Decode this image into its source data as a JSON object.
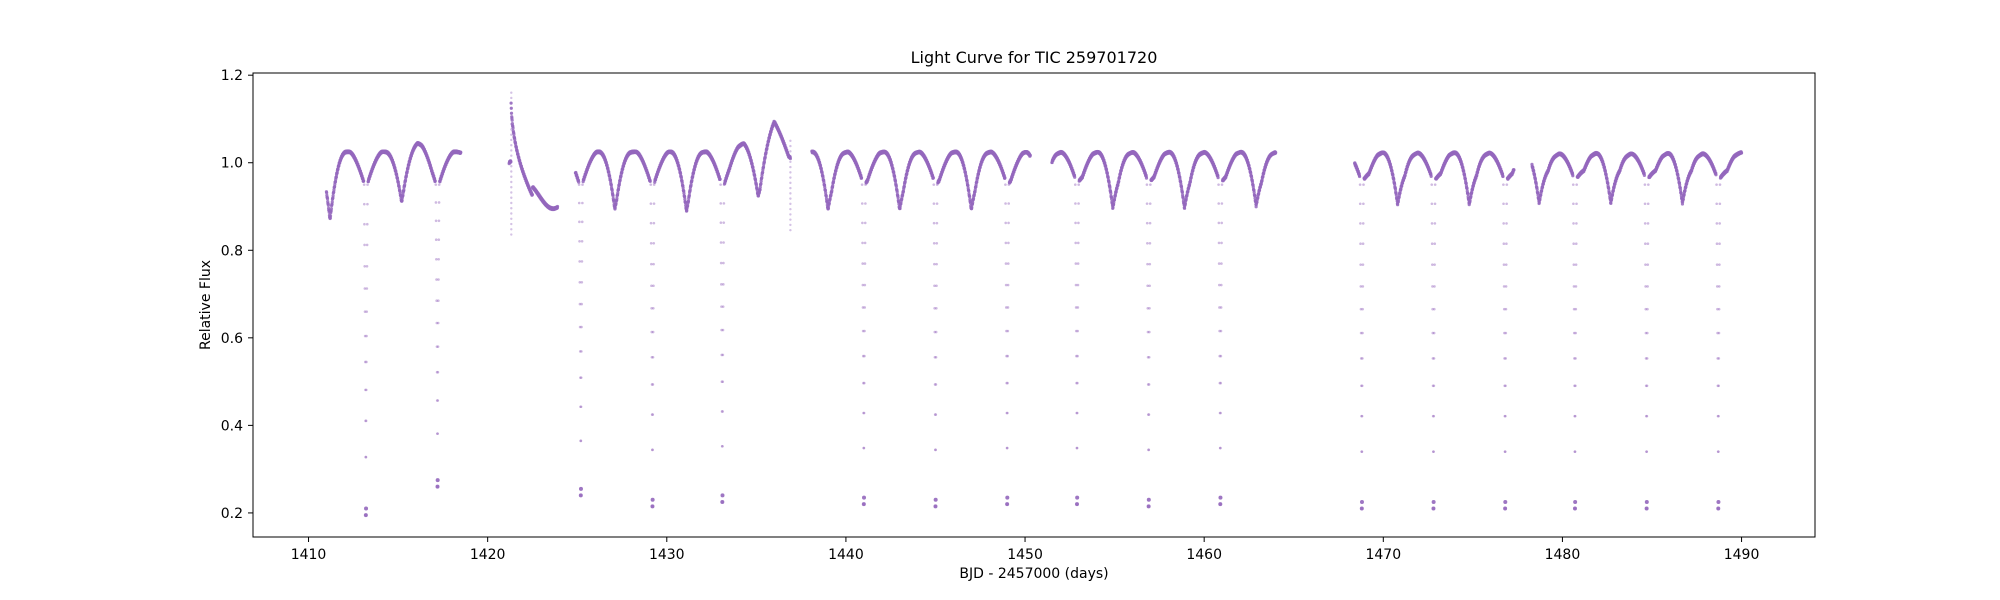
{
  "chart_data": {
    "type": "scatter",
    "title": "Light Curve for TIC 259701720",
    "xlabel": "BJD - 2457000 (days)",
    "ylabel": "Relative Flux",
    "xlim": [
      1406.9,
      1494.1
    ],
    "ylim": [
      0.145,
      1.205
    ],
    "xticks": [
      1410,
      1420,
      1430,
      1440,
      1450,
      1460,
      1470,
      1480,
      1490
    ],
    "yticks": [
      0.2,
      0.4,
      0.6,
      0.8,
      1.0,
      1.2
    ],
    "xtick_labels": [
      "1410",
      "1420",
      "1430",
      "1440",
      "1450",
      "1460",
      "1470",
      "1480",
      "1490"
    ],
    "ytick_labels": [
      "0.2",
      "0.4",
      "0.6",
      "0.8",
      "1.0",
      "1.2"
    ],
    "grid": false,
    "point_color": "#9467bd",
    "data_segments": [
      [
        1411.0,
        1418.5
      ],
      [
        1421.2,
        1423.9
      ],
      [
        1424.9,
        1436.9
      ],
      [
        1438.1,
        1450.3
      ],
      [
        1451.5,
        1464.0
      ],
      [
        1468.4,
        1477.3
      ],
      [
        1478.3,
        1490.0
      ]
    ],
    "primary_eclipses": [
      {
        "t": 1413.2,
        "depth": 0.195
      },
      {
        "t": 1417.2,
        "depth": 0.26
      },
      {
        "t": 1425.2,
        "depth": 0.24
      },
      {
        "t": 1429.2,
        "depth": 0.215
      },
      {
        "t": 1433.1,
        "depth": 0.225
      },
      {
        "t": 1441.0,
        "depth": 0.22
      },
      {
        "t": 1445.0,
        "depth": 0.215
      },
      {
        "t": 1449.0,
        "depth": 0.22
      },
      {
        "t": 1452.9,
        "depth": 0.22
      },
      {
        "t": 1456.9,
        "depth": 0.215
      },
      {
        "t": 1460.9,
        "depth": 0.22
      },
      {
        "t": 1468.8,
        "depth": 0.21
      },
      {
        "t": 1472.8,
        "depth": 0.21
      },
      {
        "t": 1476.8,
        "depth": 0.21
      },
      {
        "t": 1480.7,
        "depth": 0.21
      },
      {
        "t": 1484.7,
        "depth": 0.21
      },
      {
        "t": 1488.7,
        "depth": 0.21
      }
    ],
    "secondary_eclipses": [
      {
        "t": 1411.2,
        "level": 0.87
      },
      {
        "t": 1415.2,
        "level": 0.91
      },
      {
        "t": 1423.1,
        "level": 0.885
      },
      {
        "t": 1427.1,
        "level": 0.89
      },
      {
        "t": 1431.1,
        "level": 0.885
      },
      {
        "t": 1435.1,
        "level": 0.92
      },
      {
        "t": 1439.0,
        "level": 0.885
      },
      {
        "t": 1443.0,
        "level": 0.885
      },
      {
        "t": 1447.0,
        "level": 0.885
      },
      {
        "t": 1450.9,
        "level": 0.885
      },
      {
        "t": 1454.9,
        "level": 0.885
      },
      {
        "t": 1458.9,
        "level": 0.885
      },
      {
        "t": 1462.9,
        "level": 0.89
      },
      {
        "t": 1470.8,
        "level": 0.89
      },
      {
        "t": 1474.8,
        "level": 0.89
      },
      {
        "t": 1478.7,
        "level": 0.89
      },
      {
        "t": 1482.7,
        "level": 0.89
      },
      {
        "t": 1486.7,
        "level": 0.89
      }
    ],
    "flare": {
      "t": 1421.3,
      "peak": 1.16,
      "decay_to": 0.925,
      "min_low": 0.835
    },
    "segment_end_dips": [
      {
        "t": 1436.9,
        "level": 0.84
      }
    ],
    "quasi_maxima": [
      {
        "t": 1416.1,
        "level": 1.045
      },
      {
        "t": 1434.3,
        "level": 1.045
      },
      {
        "t": 1436.0,
        "level": 1.095
      }
    ]
  }
}
